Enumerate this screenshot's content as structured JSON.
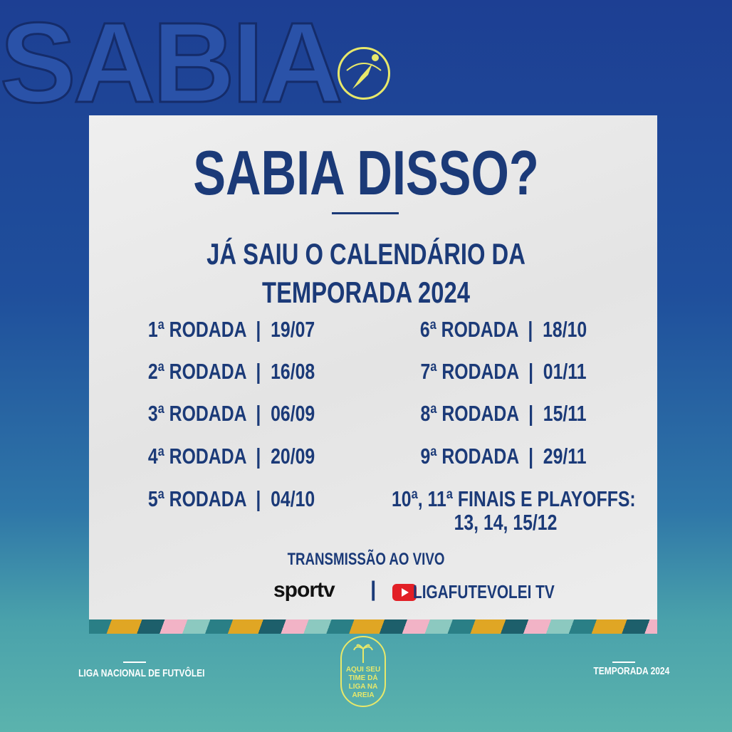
{
  "background_word": "SABIA",
  "title": "SABIA DISSO?",
  "subtitle": [
    "JÁ SAIU O CALENDÁRIO DA",
    "TEMPORADA 2024"
  ],
  "schedule_left": [
    "1ª RODADA  |  19/07",
    "2ª RODADA  |  16/08",
    "3ª RODADA  |  06/09",
    "4ª RODADA  |  20/09",
    "5ª RODADA  |  04/10"
  ],
  "schedule_right": [
    "6ª RODADA  |  18/10",
    "7ª RODADA  |  01/11",
    "8ª RODADA  |  15/11",
    "9ª RODADA  |  29/11",
    "10ª, 11ª FINAIS E PLAYOFFS:",
    "13, 14, 15/12"
  ],
  "broadcast": {
    "label": "TRANSMISSÃO AO VIVO",
    "sportv": "sportv",
    "separator": "|",
    "youtube": "LIGAFUTEVOLEI TV"
  },
  "footer": {
    "left": "LIGA NACIONAL DE FUTVÔLEI",
    "right": "TEMPORADA 2024",
    "badge": "AQUI SEU TIME DÁ LIGA NA AREIA"
  },
  "colors": {
    "text": "#1b3a78",
    "accent_yellow": "#e8e86a",
    "youtube_red": "#e21f26"
  }
}
